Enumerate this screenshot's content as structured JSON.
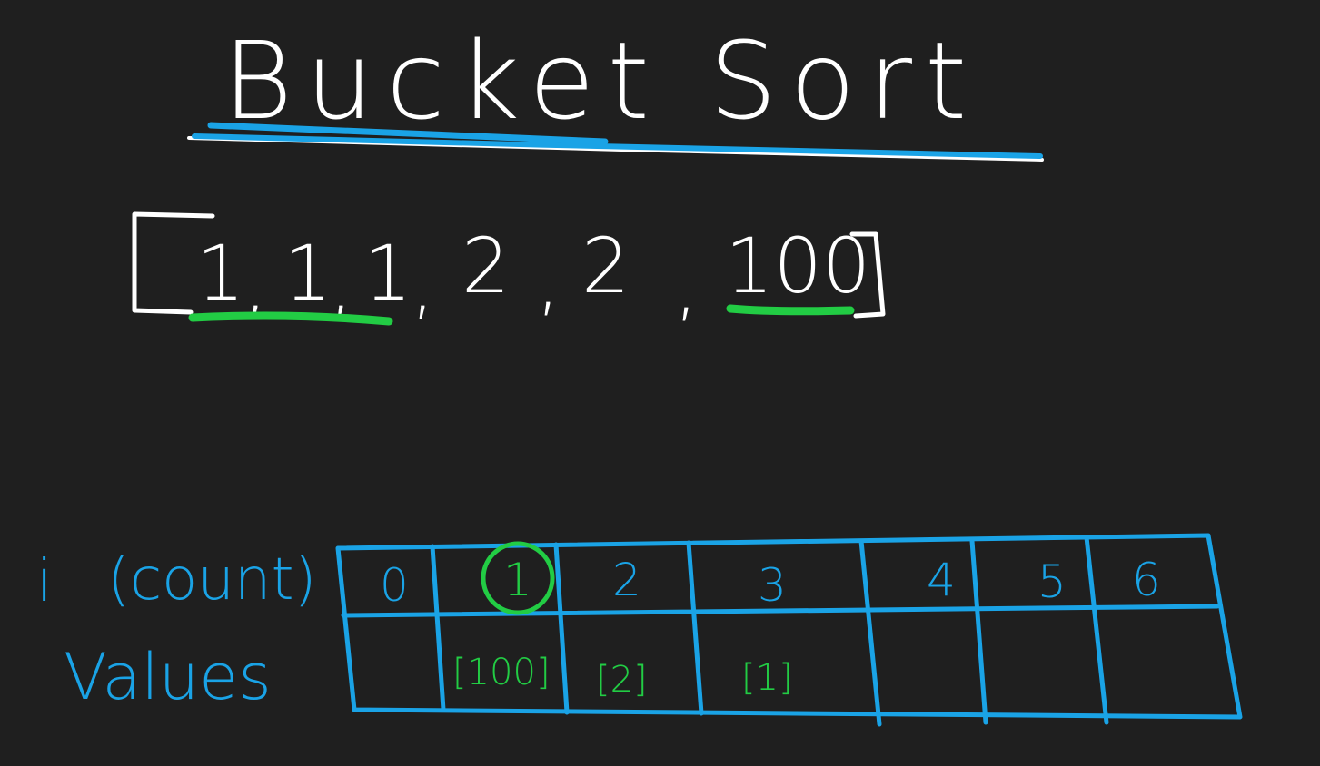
{
  "title": "Bucket Sort",
  "array": {
    "items": [
      "1",
      "1",
      "1",
      "2",
      "2",
      "100"
    ],
    "open_bracket": "[",
    "close_bracket": "]",
    "separator": ","
  },
  "table": {
    "row_labels": {
      "index": "i",
      "index_note": "(count)",
      "values": "Values"
    },
    "indices": [
      "0",
      "1",
      "2",
      "3",
      "4",
      "5",
      "6"
    ],
    "values": [
      "",
      "[100]",
      "[2]",
      "[1]",
      "",
      "",
      ""
    ],
    "highlighted_index": "1"
  },
  "colors": {
    "background": "#1f1f1f",
    "ink_white": "#ffffff",
    "ink_blue": "#1aa3e6",
    "ink_green": "#22cc44"
  }
}
